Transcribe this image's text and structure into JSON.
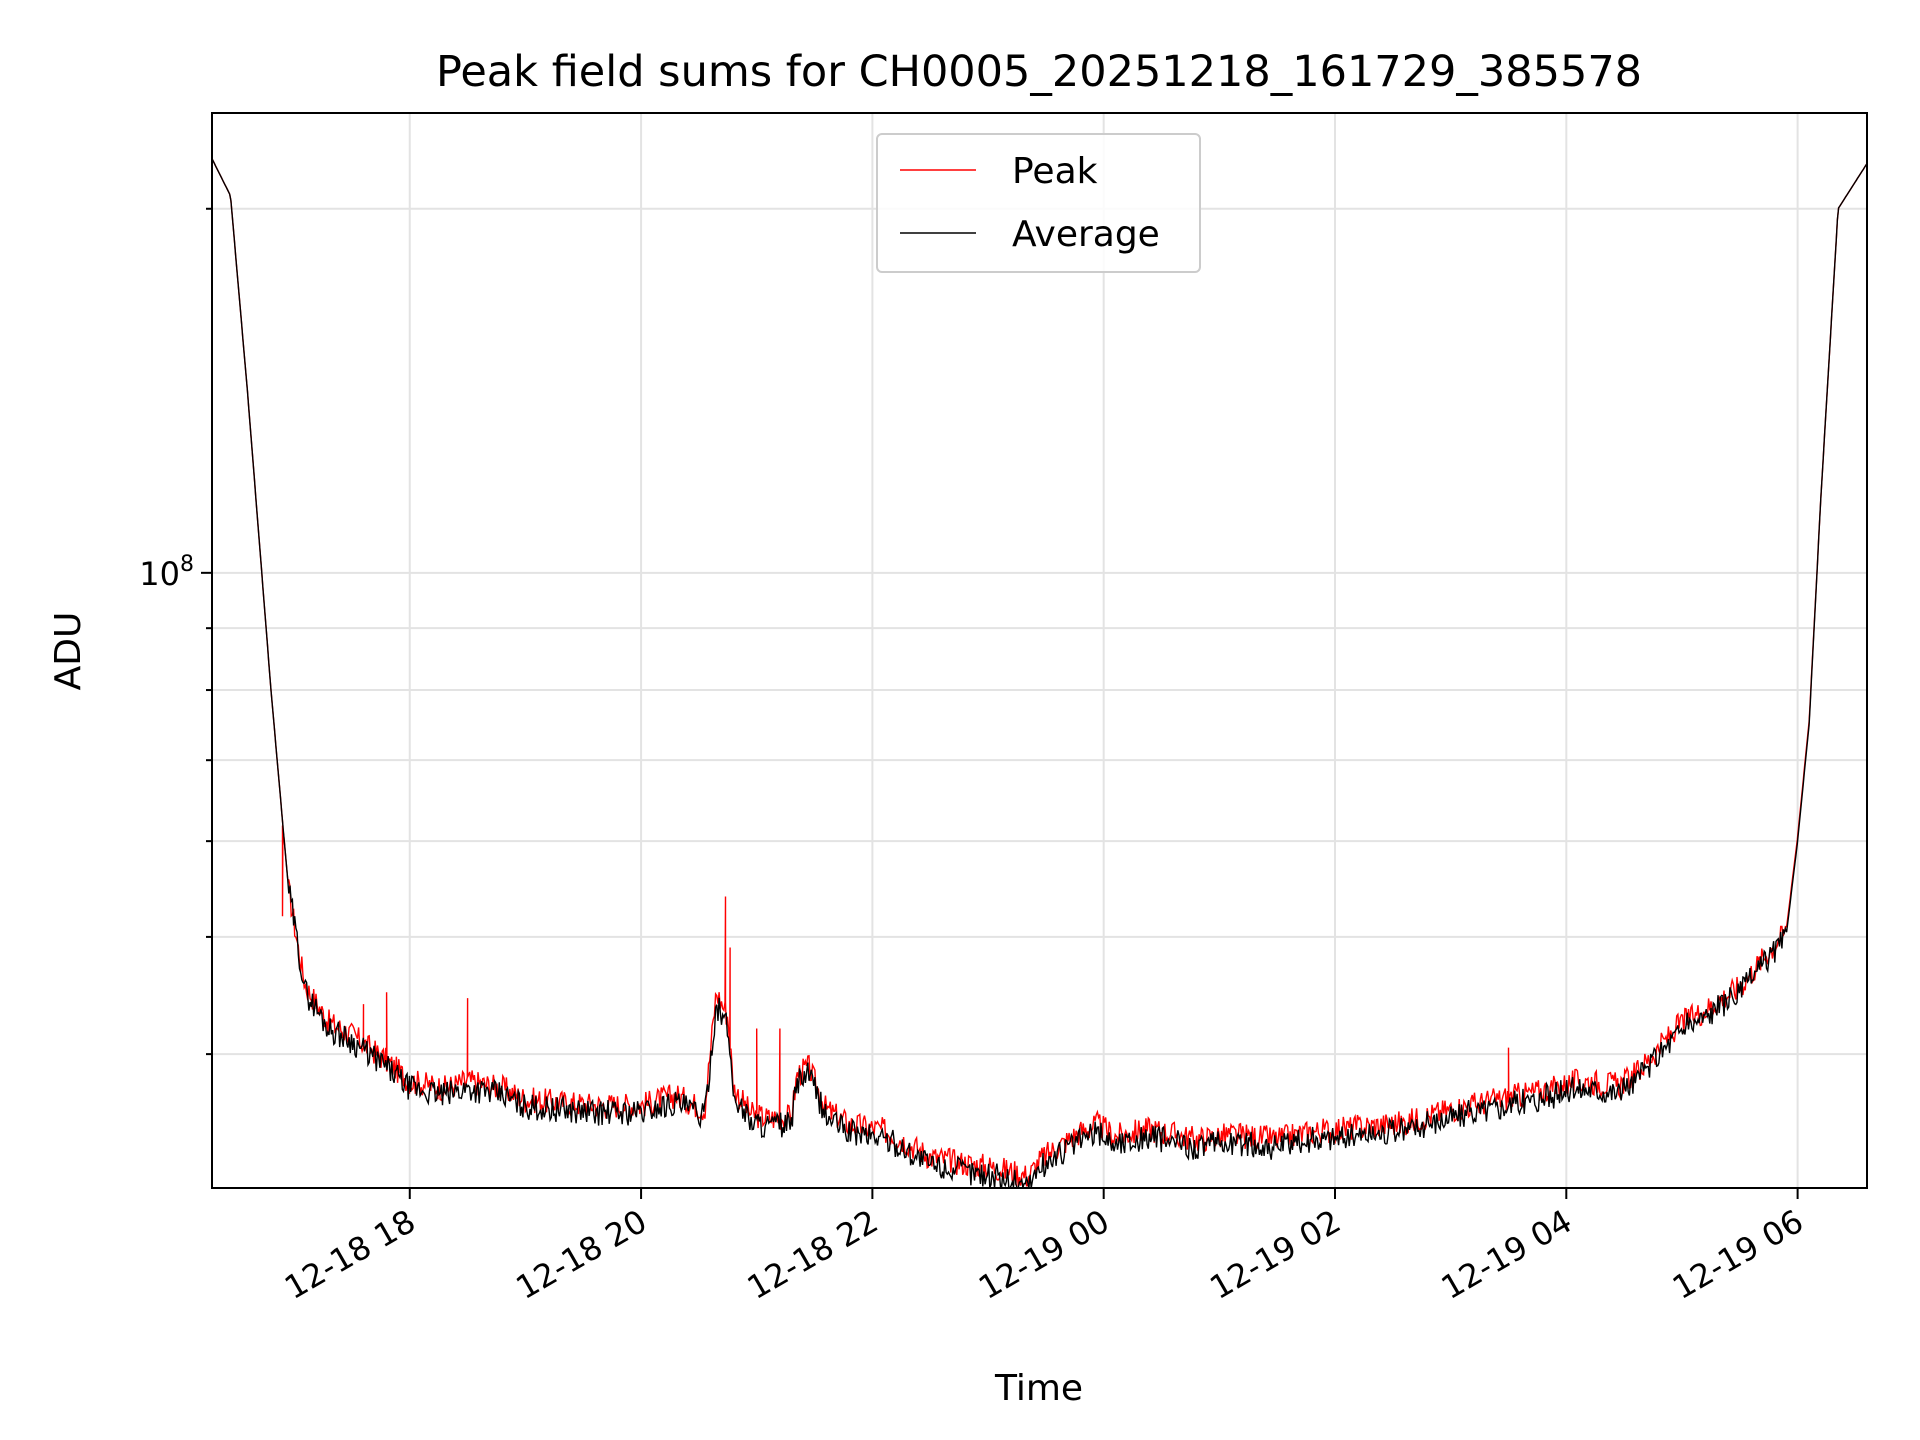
{
  "chart_data": {
    "type": "line",
    "title": "Peak field sums for CH0005_20251218_161729_385578",
    "xlabel": "Time",
    "ylabel": "ADU",
    "yscale": "log",
    "ylim": [
      31000000,
      240000000
    ],
    "xlim_hours": [
      16.29,
      30.6
    ],
    "xticks": [
      {
        "hour": 18,
        "label": "12-18 18"
      },
      {
        "hour": 20,
        "label": "12-18 20"
      },
      {
        "hour": 22,
        "label": "12-18 22"
      },
      {
        "hour": 24,
        "label": "12-19 00"
      },
      {
        "hour": 26,
        "label": "12-19 02"
      },
      {
        "hour": 28,
        "label": "12-19 04"
      },
      {
        "hour": 30,
        "label": "12-19 06"
      }
    ],
    "ytick_label": {
      "base": "10",
      "exponent": "8",
      "value": 100000000
    },
    "grid": true,
    "legend_location": "upper center",
    "legend": [
      {
        "name": "Peak",
        "color": "#ff0000"
      },
      {
        "name": "Average",
        "color": "#000000"
      }
    ],
    "x_hours": [
      16.29,
      16.45,
      16.6,
      16.8,
      16.95,
      17.05,
      17.1,
      17.3,
      17.5,
      17.8,
      18.0,
      18.3,
      18.5,
      18.8,
      19.0,
      19.3,
      19.6,
      20.0,
      20.3,
      20.55,
      20.65,
      20.75,
      20.8,
      20.95,
      21.1,
      21.3,
      21.35,
      21.45,
      21.6,
      21.8,
      22.1,
      22.3,
      22.5,
      22.8,
      23.0,
      23.2,
      23.35,
      23.45,
      23.6,
      23.8,
      23.95,
      24.1,
      24.4,
      24.8,
      25.1,
      25.5,
      25.8,
      26.2,
      26.6,
      27.0,
      27.3,
      27.6,
      27.9,
      28.05,
      28.2,
      28.45,
      28.6,
      28.9,
      29.0,
      29.2,
      29.5,
      29.7,
      29.9,
      30.0,
      30.1,
      30.2,
      30.35,
      30.6
    ],
    "series": [
      {
        "name": "Average",
        "values": [
          220000000,
          205000000,
          140000000,
          80000000,
          55000000,
          48000000,
          45000000,
          42000000,
          41000000,
          39000000,
          37500000,
          37000000,
          37500000,
          37000000,
          36200000,
          36000000,
          35800000,
          35800000,
          36500000,
          35500000,
          44000000,
          42000000,
          37000000,
          35200000,
          34900000,
          35000000,
          38000000,
          38500000,
          35500000,
          34500000,
          34100000,
          33300000,
          32400000,
          32000000,
          31800000,
          31500000,
          31200000,
          32200000,
          33000000,
          34000000,
          34500000,
          33700000,
          34200000,
          33500000,
          33800000,
          33500000,
          34000000,
          34300000,
          34600000,
          35500000,
          36000000,
          36500000,
          37000000,
          37400000,
          37500000,
          37200000,
          38000000,
          41000000,
          42000000,
          43000000,
          45000000,
          47500000,
          50000000,
          60000000,
          75000000,
          115000000,
          200000000,
          218000000
        ]
      },
      {
        "name": "Peak",
        "values": [
          220000000,
          205000000,
          140000000,
          80000000,
          55000000,
          48000000,
          45500000,
          42500000,
          41500000,
          39500000,
          38000000,
          37500000,
          38000000,
          37500000,
          36700000,
          36500000,
          36300000,
          36300000,
          37000000,
          36000000,
          45000000,
          43000000,
          37500000,
          35700000,
          35400000,
          35500000,
          38500000,
          39000000,
          36000000,
          35000000,
          34600000,
          33800000,
          32900000,
          32500000,
          32300000,
          32000000,
          31700000,
          32700000,
          33500000,
          34500000,
          35000000,
          34200000,
          34700000,
          34000000,
          34300000,
          34000000,
          34500000,
          34800000,
          35100000,
          36000000,
          36500000,
          37000000,
          37500000,
          37900000,
          38000000,
          37700000,
          38500000,
          41500000,
          42500000,
          43500000,
          45500000,
          48000000,
          50500000,
          60500000,
          75500000,
          115000000,
          200000000,
          218000000
        ]
      }
    ],
    "peak_spikes": [
      {
        "hour": 16.9,
        "value": 52000000
      },
      {
        "hour": 17.6,
        "value": 44000000
      },
      {
        "hour": 17.8,
        "value": 45000000
      },
      {
        "hour": 18.5,
        "value": 44500000
      },
      {
        "hour": 20.73,
        "value": 54000000
      },
      {
        "hour": 20.77,
        "value": 49000000
      },
      {
        "hour": 21.0,
        "value": 42000000
      },
      {
        "hour": 21.2,
        "value": 42000000
      },
      {
        "hour": 27.5,
        "value": 40500000
      }
    ]
  }
}
